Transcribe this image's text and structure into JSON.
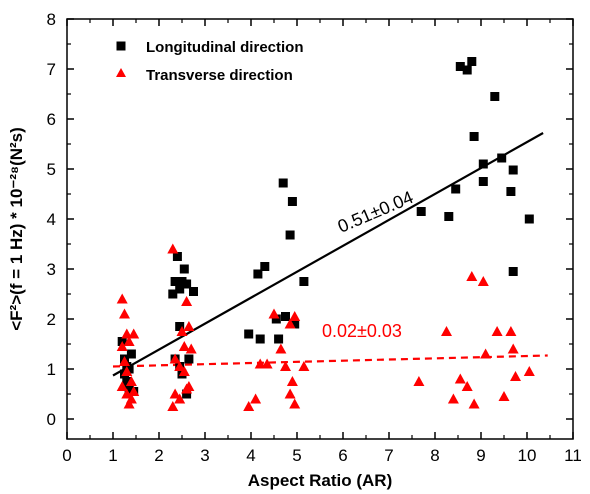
{
  "chart_data": {
    "type": "scatter",
    "xlabel": "Aspect Ratio (AR)",
    "ylabel": "<F²>(f = 1 Hz) * 10⁻²⁸(N²s)",
    "xlim": [
      0,
      11
    ],
    "ylim": [
      -0.4,
      8
    ],
    "x_ticks": [
      "0",
      "1",
      "2",
      "3",
      "4",
      "5",
      "6",
      "7",
      "8",
      "9",
      "10",
      "11"
    ],
    "y_ticks": [
      "0",
      "1",
      "2",
      "3",
      "4",
      "5",
      "6",
      "7",
      "8"
    ],
    "legend_position": "top-left",
    "series": [
      {
        "name": "Longitudinal direction",
        "color": "#000000",
        "marker": "square",
        "points": [
          [
            1.2,
            1.55
          ],
          [
            1.25,
            1.2
          ],
          [
            1.3,
            1.05
          ],
          [
            1.25,
            0.9
          ],
          [
            1.3,
            0.75
          ],
          [
            1.35,
            0.6
          ],
          [
            1.4,
            1.3
          ],
          [
            1.35,
            1.0
          ],
          [
            1.45,
            0.55
          ],
          [
            2.3,
            2.5
          ],
          [
            2.35,
            2.75
          ],
          [
            2.4,
            3.25
          ],
          [
            2.5,
            2.75
          ],
          [
            2.55,
            3.0
          ],
          [
            2.45,
            2.6
          ],
          [
            2.6,
            2.7
          ],
          [
            2.75,
            2.55
          ],
          [
            2.45,
            1.85
          ],
          [
            2.35,
            1.2
          ],
          [
            2.45,
            1.05
          ],
          [
            2.5,
            0.9
          ],
          [
            2.65,
            1.2
          ],
          [
            2.6,
            0.5
          ],
          [
            3.95,
            1.7
          ],
          [
            4.15,
            2.9
          ],
          [
            4.3,
            3.05
          ],
          [
            4.2,
            1.6
          ],
          [
            4.55,
            2.0
          ],
          [
            4.7,
            4.72
          ],
          [
            4.9,
            4.35
          ],
          [
            4.85,
            3.68
          ],
          [
            4.75,
            2.05
          ],
          [
            4.95,
            1.9
          ],
          [
            4.6,
            1.6
          ],
          [
            5.15,
            2.75
          ],
          [
            7.7,
            4.15
          ],
          [
            8.3,
            4.05
          ],
          [
            8.45,
            4.6
          ],
          [
            8.55,
            7.05
          ],
          [
            8.7,
            6.98
          ],
          [
            8.8,
            7.15
          ],
          [
            8.85,
            5.65
          ],
          [
            9.05,
            5.1
          ],
          [
            9.05,
            4.75
          ],
          [
            9.3,
            6.45
          ],
          [
            9.45,
            5.22
          ],
          [
            9.7,
            4.98
          ],
          [
            9.65,
            4.55
          ],
          [
            9.7,
            2.95
          ],
          [
            10.05,
            4.0
          ]
        ]
      },
      {
        "name": "Transverse direction",
        "color": "#ff0000",
        "marker": "triangle",
        "points": [
          [
            1.2,
            2.4
          ],
          [
            1.25,
            2.1
          ],
          [
            1.3,
            1.7
          ],
          [
            1.2,
            1.45
          ],
          [
            1.35,
            1.55
          ],
          [
            1.45,
            1.7
          ],
          [
            1.25,
            1.15
          ],
          [
            1.3,
            0.95
          ],
          [
            1.4,
            0.75
          ],
          [
            1.2,
            0.65
          ],
          [
            1.3,
            0.5
          ],
          [
            1.4,
            0.4
          ],
          [
            1.35,
            0.3
          ],
          [
            1.45,
            0.55
          ],
          [
            2.3,
            3.4
          ],
          [
            2.6,
            2.35
          ],
          [
            2.5,
            1.75
          ],
          [
            2.65,
            1.85
          ],
          [
            2.55,
            1.45
          ],
          [
            2.7,
            1.4
          ],
          [
            2.35,
            1.2
          ],
          [
            2.45,
            1.05
          ],
          [
            2.55,
            0.95
          ],
          [
            2.65,
            0.65
          ],
          [
            2.35,
            0.5
          ],
          [
            2.3,
            0.25
          ],
          [
            2.45,
            0.4
          ],
          [
            2.6,
            0.6
          ],
          [
            3.95,
            0.25
          ],
          [
            4.1,
            0.4
          ],
          [
            4.2,
            1.1
          ],
          [
            4.35,
            1.1
          ],
          [
            4.5,
            2.1
          ],
          [
            4.65,
            1.4
          ],
          [
            4.75,
            1.05
          ],
          [
            4.85,
            1.9
          ],
          [
            4.95,
            2.05
          ],
          [
            4.9,
            0.75
          ],
          [
            4.85,
            0.5
          ],
          [
            4.95,
            0.3
          ],
          [
            5.15,
            1.05
          ],
          [
            7.65,
            0.75
          ],
          [
            8.25,
            1.75
          ],
          [
            8.4,
            0.4
          ],
          [
            8.55,
            0.8
          ],
          [
            8.7,
            0.65
          ],
          [
            8.8,
            2.85
          ],
          [
            8.85,
            0.3
          ],
          [
            9.05,
            2.75
          ],
          [
            9.1,
            1.3
          ],
          [
            9.35,
            1.75
          ],
          [
            9.5,
            0.45
          ],
          [
            9.65,
            1.75
          ],
          [
            9.7,
            1.4
          ],
          [
            9.75,
            0.85
          ],
          [
            10.05,
            0.95
          ]
        ]
      }
    ],
    "fits": [
      {
        "series": "Longitudinal direction",
        "x": [
          1.0,
          10.35
        ],
        "y": [
          0.87,
          5.72
        ],
        "style": "solid",
        "color": "#000000"
      },
      {
        "series": "Transverse direction",
        "x": [
          1.0,
          10.45
        ],
        "y": [
          1.05,
          1.27
        ],
        "style": "dashed",
        "color": "#ff0000"
      }
    ],
    "annotations": [
      {
        "text": "0.51±0.04",
        "color": "#000000"
      },
      {
        "text": "0.02±0.03",
        "color": "#ff0000"
      }
    ]
  }
}
